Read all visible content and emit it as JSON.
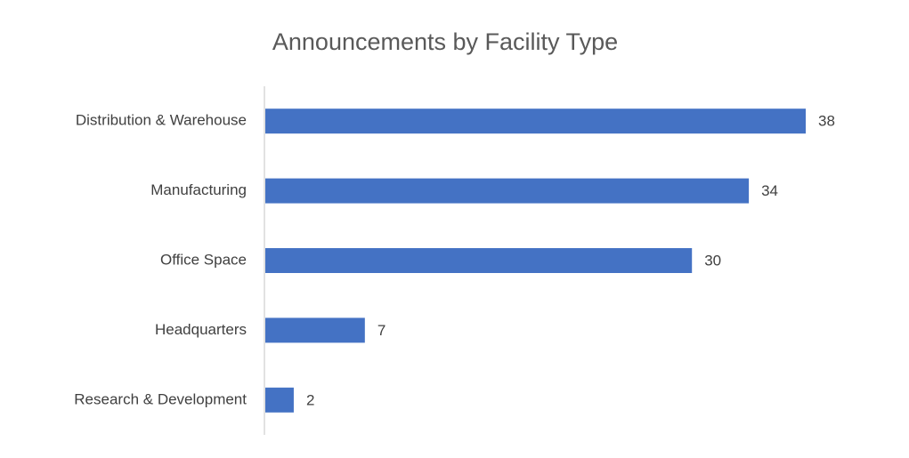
{
  "chart_data": {
    "type": "bar",
    "orientation": "horizontal",
    "title": "Announcements by Facility Type",
    "categories": [
      "Distribution & Warehouse",
      "Manufacturing",
      "Office Space",
      "Headquarters",
      "Research & Development"
    ],
    "values": [
      38,
      34,
      30,
      7,
      2
    ],
    "color": "#4472c4"
  }
}
